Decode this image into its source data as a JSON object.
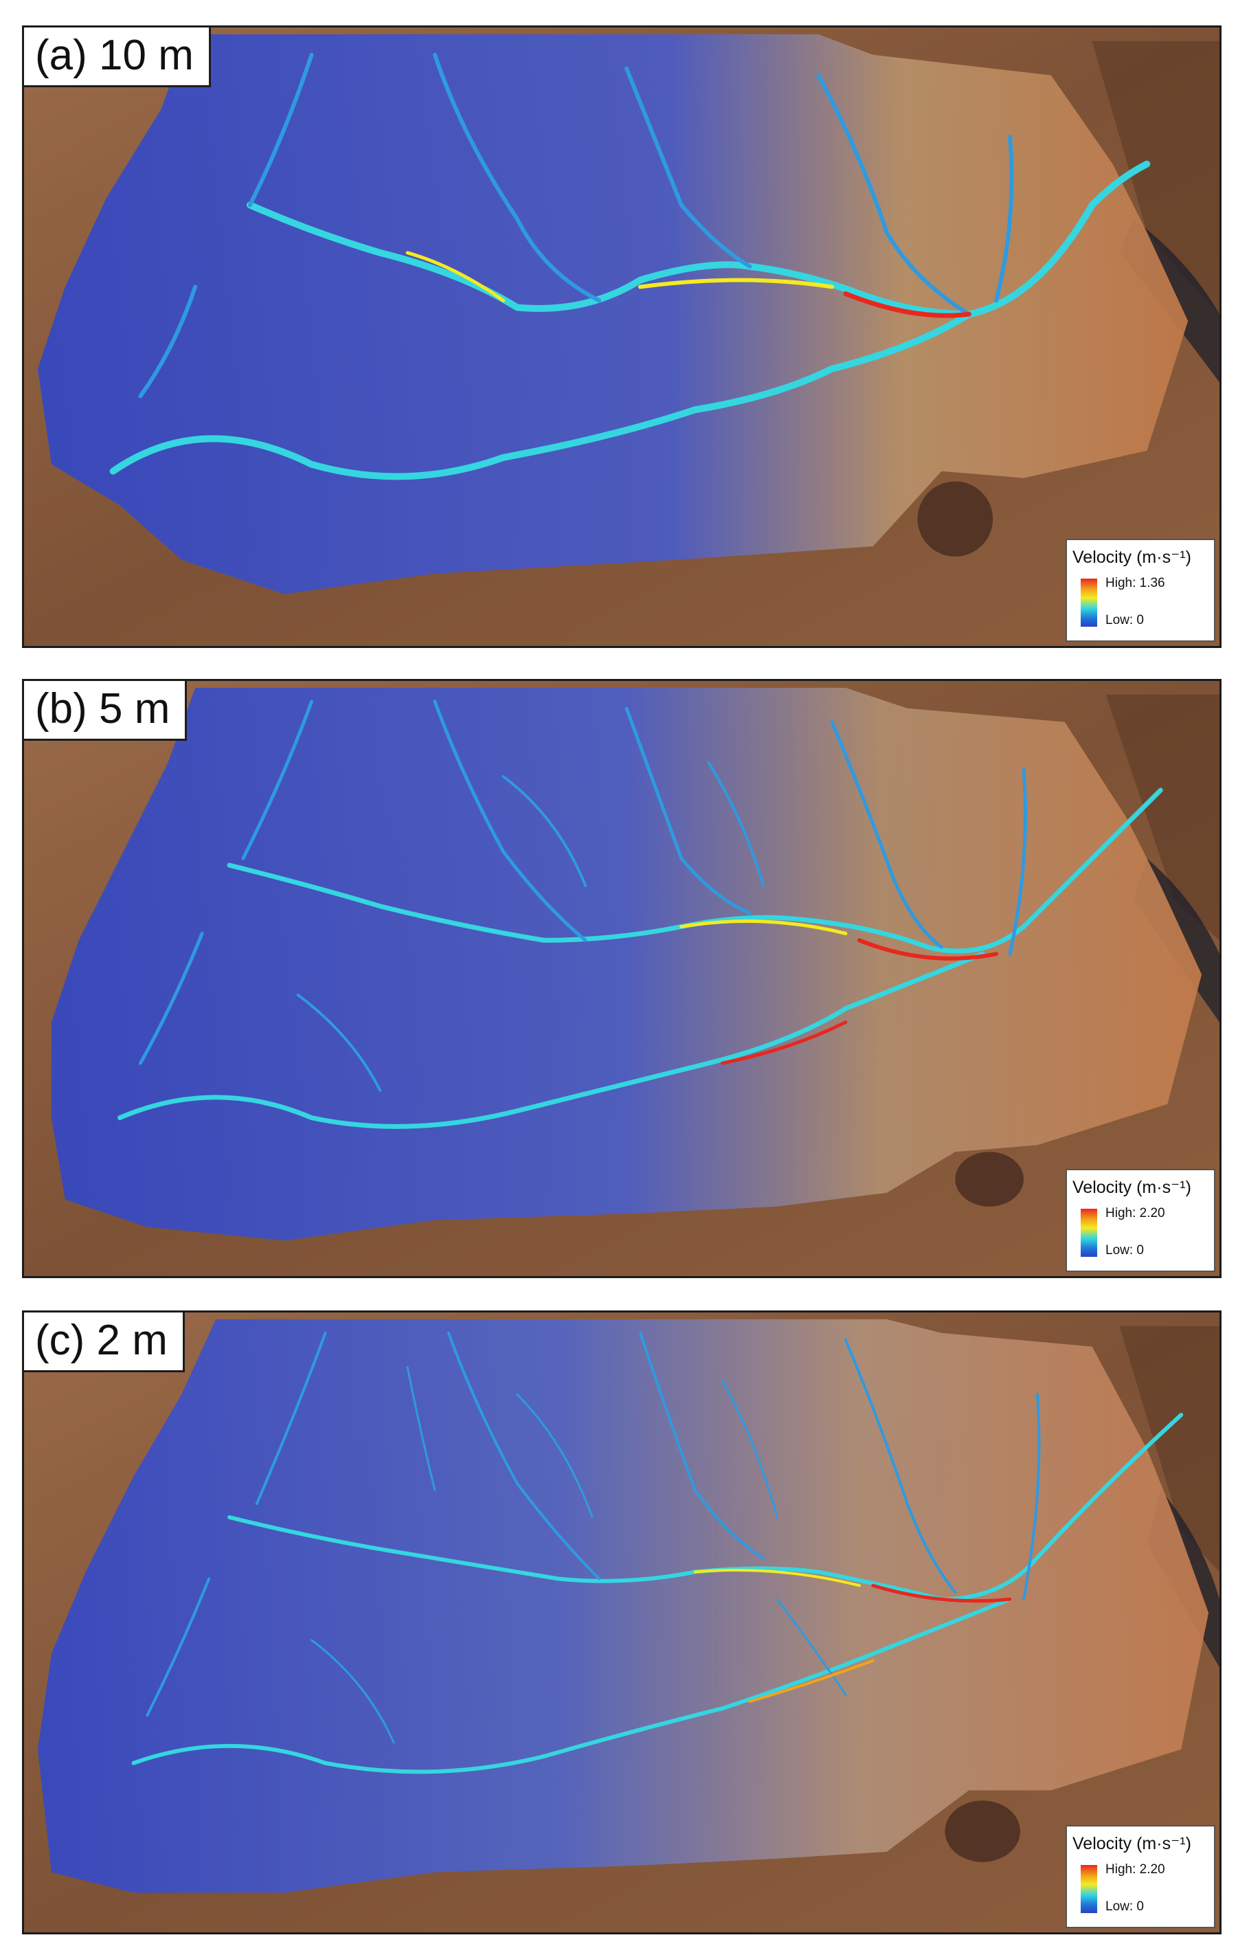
{
  "figure": {
    "panels": [
      {
        "label": "(a) 10 m",
        "legend": {
          "title": "Velocity (m·s⁻¹)",
          "high": "High: 1.36",
          "low": "Low: 0"
        }
      },
      {
        "label": "(b) 5 m",
        "legend": {
          "title": "Velocity (m·s⁻¹)",
          "high": "High: 2.20",
          "low": "Low: 0"
        }
      },
      {
        "label": "(c) 2 m",
        "legend": {
          "title": "Velocity (m·s⁻¹)",
          "high": "High: 2.20",
          "low": "Low: 0"
        }
      }
    ],
    "colors": {
      "terrain": "#8a5a3c",
      "terrain_dark": "#5e3b26",
      "overlay_low": "#3550c8",
      "overlay_mid": "#2f9ae0",
      "channel_cyan": "#35d6e0",
      "channel_yellow": "#f5ea1e",
      "channel_red": "#e8271e",
      "border": "#1c1c1c"
    }
  }
}
